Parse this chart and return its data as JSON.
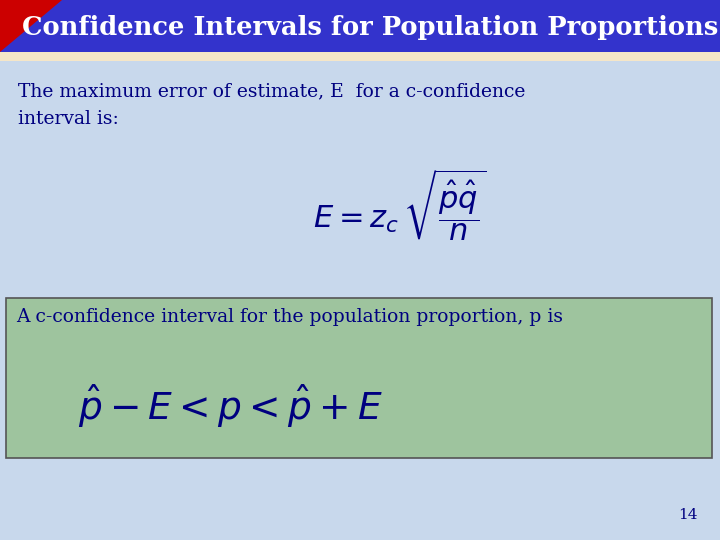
{
  "title": "Confidence Intervals for Population Proportions",
  "title_bg_color": "#3333cc",
  "title_text_color": "#ffffff",
  "title_stripe_color": "#f5e6c8",
  "bg_color": "#c8d8ec",
  "red_triangle_color": "#cc0000",
  "text1_line1": "The maximum error of estimate, E  for a c-confidence",
  "text1_line2": "interval is:",
  "text1_color": "#000080",
  "formula1_color": "#000080",
  "box2_bg_color": "#9ec49e",
  "box2_border_color": "#555555",
  "text2": "A c-confidence interval for the population proportion, p is",
  "text2_color": "#000080",
  "formula2_color": "#000080",
  "page_num": "14",
  "page_num_color": "#000080"
}
